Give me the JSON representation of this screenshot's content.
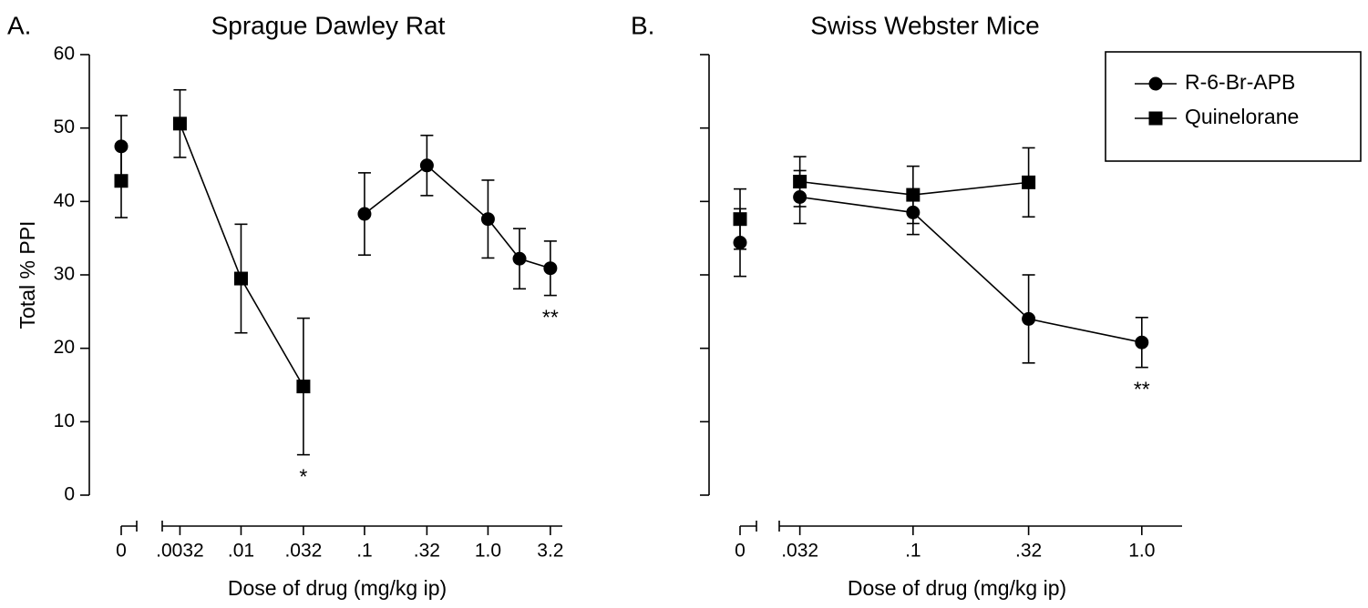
{
  "chart_data": [
    {
      "type": "line",
      "panel_label": "A.",
      "title": "Sprague Dawley Rat",
      "xlabel": "Dose of drug (mg/kg ip)",
      "ylabel": "Total % PPI",
      "xscale": "log",
      "xbreak": true,
      "xlim": [
        0.0023,
        4
      ],
      "ylim": [
        0,
        60
      ],
      "xticks": [
        0,
        {
          "value": 0.0032,
          "label": ".0032"
        },
        {
          "value": 0.01,
          "label": ".01"
        },
        {
          "value": 0.032,
          "label": ".032"
        },
        {
          "value": 0.1,
          "label": ".1"
        },
        {
          "value": 0.32,
          "label": ".32"
        },
        {
          "value": 1,
          "label": "1.0"
        },
        {
          "value": 3.2,
          "label": "3.2"
        }
      ],
      "yticks": [
        0,
        10,
        20,
        30,
        40,
        50,
        60
      ],
      "series": [
        {
          "marker": "square",
          "color": "#000000",
          "x": [
            0,
            0.0032,
            0.01,
            0.032
          ],
          "values": [
            42.8,
            50.6,
            29.5,
            14.8
          ],
          "errors": [
            5.0,
            4.6,
            7.4,
            9.3
          ]
        },
        {
          "marker": "circle",
          "color": "#000000",
          "x": [
            0,
            0.1,
            0.32,
            1,
            1.8,
            3.2
          ],
          "values": [
            47.5,
            38.3,
            44.9,
            37.6,
            32.2,
            30.9
          ],
          "errors": [
            4.2,
            5.6,
            4.1,
            5.3,
            4.1,
            3.7
          ]
        }
      ],
      "annotations": [
        {
          "text": "*",
          "x": 0.032
        },
        {
          "text": "**",
          "x": 3.2
        }
      ]
    },
    {
      "type": "line",
      "panel_label": "B.",
      "title": "Swiss Webster Mice",
      "xlabel": "Dose of drug (mg/kg ip)",
      "xscale": "log",
      "xbreak": true,
      "xlim": [
        0.026,
        1.5
      ],
      "ylim": [
        0,
        60
      ],
      "xticks": [
        0,
        {
          "value": 0.032,
          "label": ".032"
        },
        {
          "value": 0.1,
          "label": ".1"
        },
        {
          "value": 0.32,
          "label": ".32"
        },
        {
          "value": 1,
          "label": "1.0"
        }
      ],
      "yticks": [
        0,
        10,
        20,
        30,
        40,
        50,
        60
      ],
      "ytick_labels": false,
      "legend": "upper right",
      "series": [
        {
          "name": "R-6-Br-APB",
          "marker": "circle",
          "color": "#000000",
          "x": [
            0,
            0.032,
            0.1,
            0.32,
            1
          ],
          "values": [
            34.4,
            40.6,
            38.5,
            24.0,
            20.8
          ],
          "errors": [
            4.6,
            3.6,
            3.0,
            6.0,
            3.4
          ]
        },
        {
          "name": "Quinelorane",
          "marker": "square",
          "color": "#000000",
          "x": [
            0,
            0.032,
            0.1,
            0.32
          ],
          "values": [
            37.6,
            42.7,
            40.9,
            42.6
          ],
          "errors": [
            4.1,
            3.4,
            3.9,
            4.7
          ]
        }
      ],
      "annotations": [
        {
          "text": "**",
          "x": 1
        }
      ]
    }
  ]
}
